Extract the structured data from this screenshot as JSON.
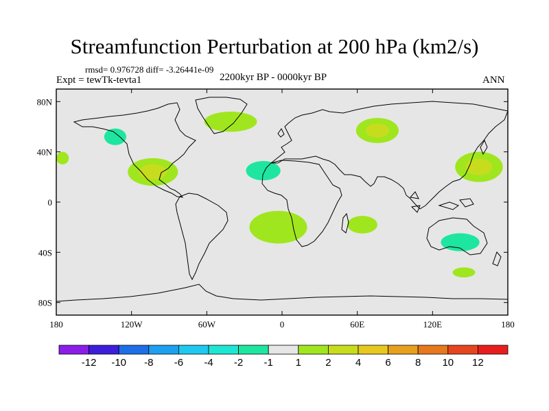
{
  "title": "Streamfunction Perturbation at 200 hPa (km2/s)",
  "stats": "rmsd= 0.976728 diff= -3.26441e-09",
  "experiment": "Expt = tewTk-tevta1",
  "period": "2200kyr BP - 0000kyr BP",
  "season": "ANN",
  "axes": {
    "lon_ticks": [
      {
        "value": -180,
        "label": "180"
      },
      {
        "value": -120,
        "label": "120W"
      },
      {
        "value": -60,
        "label": "60W"
      },
      {
        "value": 0,
        "label": "0"
      },
      {
        "value": 60,
        "label": "60E"
      },
      {
        "value": 120,
        "label": "120E"
      },
      {
        "value": 180,
        "label": "180"
      }
    ],
    "lat_ticks": [
      {
        "value": 80,
        "label": "80N"
      },
      {
        "value": 40,
        "label": "40N"
      },
      {
        "value": 0,
        "label": "0"
      },
      {
        "value": -40,
        "label": "40S"
      },
      {
        "value": -80,
        "label": "80S"
      }
    ],
    "lon_range": [
      -180,
      180
    ],
    "lat_range": [
      -90,
      90
    ]
  },
  "colorbar": {
    "colors": [
      "#8a1ee6",
      "#3c1edc",
      "#1e6ee6",
      "#1ea0f0",
      "#1ec8f0",
      "#1ee6d2",
      "#1ee6a0",
      "#e6e6e6",
      "#a0e61e",
      "#c8dc1e",
      "#e6c81e",
      "#e6a01e",
      "#e6781e",
      "#e6461e",
      "#e61e1e"
    ],
    "labels": [
      "-12",
      "-10",
      "-8",
      "-6",
      "-4",
      "-2",
      "-1",
      "1",
      "2",
      "4",
      "6",
      "8",
      "10",
      "12"
    ]
  },
  "chart_data": {
    "type": "heatmap",
    "variable": "Streamfunction Perturbation at 200 hPa",
    "units": "km2/s",
    "levels": [
      -12,
      -10,
      -8,
      -6,
      -4,
      -2,
      -1,
      1,
      2,
      4,
      6,
      8,
      10,
      12
    ],
    "features": [
      {
        "name": "n-pacific-neg",
        "lon": -133,
        "lat": 52,
        "rlon": 16,
        "rlat": 12,
        "outer": -1,
        "inner": -2
      },
      {
        "name": "n-america-pos",
        "lon": -103,
        "lat": 24,
        "rlon": 20,
        "rlat": 11,
        "outer": 1,
        "inner": 2
      },
      {
        "name": "caribbean-neg",
        "lon": -77,
        "lat": 4,
        "rlon": 8,
        "rlat": 4,
        "outer": -1,
        "inner": null
      },
      {
        "name": "n-atlantic-pos",
        "lon": -41,
        "lat": 64,
        "rlon": 21,
        "rlat": 8,
        "outer": 1,
        "inner": null
      },
      {
        "name": "atlantic-neg",
        "lon": -15,
        "lat": 25,
        "rlon": 25,
        "rlat": 14,
        "outer": -1,
        "inner": -2
      },
      {
        "name": "europe-neg",
        "lon": 15,
        "lat": 67,
        "rlon": 17,
        "rlat": 9,
        "outer": -1,
        "inner": null
      },
      {
        "name": "w-siberia-pos",
        "lon": 76,
        "lat": 57,
        "rlon": 17,
        "rlat": 10,
        "outer": 1,
        "inner": 2
      },
      {
        "name": "nw-pacific-pos",
        "lon": 157,
        "lat": 28,
        "rlon": 19,
        "rlat": 12,
        "outer": 1,
        "inner": 2
      },
      {
        "name": "w-atlantic-pos",
        "lon": -175,
        "lat": 35,
        "rlon": 5,
        "rlat": 5,
        "outer": 1,
        "inner": null
      },
      {
        "name": "s-pacific-neg",
        "lon": -150,
        "lat": -15,
        "rlon": 24,
        "rlat": 8,
        "outer": -1,
        "inner": null
      },
      {
        "name": "s-pacific-neg-2",
        "lon": -134,
        "lat": -37,
        "rlon": 19,
        "rlat": 6,
        "outer": -1,
        "inner": null
      },
      {
        "name": "se-pacific-neg",
        "lon": -158,
        "lat": -57,
        "rlon": 10,
        "rlat": 6,
        "outer": -1,
        "inner": null
      },
      {
        "name": "s-atlantic-pos",
        "lon": -3,
        "lat": -20,
        "rlon": 23,
        "rlat": 13,
        "outer": 1,
        "inner": null
      },
      {
        "name": "s-indian-pos",
        "lon": 64,
        "lat": -18,
        "rlon": 12,
        "rlat": 7,
        "outer": 1,
        "inner": null
      },
      {
        "name": "australia-neg",
        "lon": 142,
        "lat": -32,
        "rlon": 28,
        "rlat": 13,
        "outer": -1,
        "inner": -2
      },
      {
        "name": "s-ocean-pos",
        "lon": 145,
        "lat": -56,
        "rlon": 9,
        "rlat": 4,
        "outer": 1,
        "inner": null
      }
    ]
  }
}
